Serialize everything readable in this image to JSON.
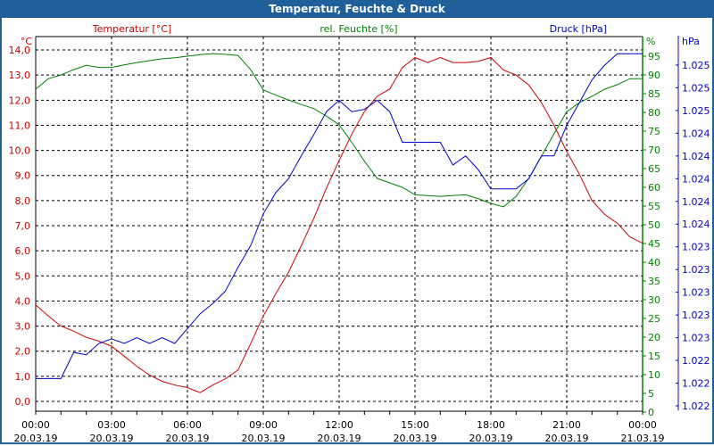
{
  "window_title": "Temperatur, Feuchte & Druck",
  "colors": {
    "temp": "#cc0000",
    "hum": "#008000",
    "press": "#0000cc",
    "title_bar": "#1f5f9a"
  },
  "chart_data": {
    "type": "line",
    "title": "Temperatur, Feuchte & Druck",
    "x_hours": [
      0,
      0.5,
      1,
      1.5,
      2,
      2.5,
      3,
      3.5,
      4,
      4.5,
      5,
      5.5,
      6,
      6.5,
      7,
      7.5,
      8,
      8.5,
      9,
      9.5,
      10,
      10.5,
      11,
      11.5,
      12,
      12.5,
      13,
      13.5,
      14,
      14.5,
      15,
      15.5,
      16,
      16.5,
      17,
      17.5,
      18,
      18.5,
      19,
      19.5,
      20,
      20.5,
      21,
      21.5,
      22,
      22.5,
      23,
      23.5,
      24
    ],
    "x_tick_labels": [
      [
        "00:00",
        "20.03.19"
      ],
      [
        "03:00",
        "20.03.19"
      ],
      [
        "06:00",
        "20.03.19"
      ],
      [
        "09:00",
        "20.03.19"
      ],
      [
        "12:00",
        "20.03.19"
      ],
      [
        "15:00",
        "20.03.19"
      ],
      [
        "18:00",
        "20.03.19"
      ],
      [
        "21:00",
        "20.03.19"
      ],
      [
        "00:00",
        "21.03.19"
      ]
    ],
    "series": [
      {
        "name": "Temperatur [°C]",
        "unit": "°C",
        "axis": "left",
        "ylim": [
          -0.43,
          14.0
        ],
        "ticks": [
          "0,0",
          "1,0",
          "2,0",
          "3,0",
          "4,0",
          "5,0",
          "6,0",
          "7,0",
          "8,0",
          "9,0",
          "10,0",
          "11,0",
          "12,0",
          "13,0",
          "14,0"
        ],
        "values": [
          3.84,
          3.4,
          3.0,
          2.8,
          2.55,
          2.4,
          2.2,
          1.8,
          1.4,
          1.05,
          0.8,
          0.65,
          0.55,
          0.35,
          0.65,
          0.9,
          1.25,
          2.3,
          3.4,
          4.3,
          5.15,
          6.2,
          7.3,
          8.5,
          9.6,
          10.65,
          11.55,
          12.15,
          12.45,
          13.3,
          13.7,
          13.5,
          13.7,
          13.5,
          13.5,
          13.55,
          13.7,
          13.2,
          13.0,
          12.6,
          11.9,
          11.0,
          9.95,
          9.05,
          8.0,
          7.45,
          7.1,
          6.55,
          6.3
        ]
      },
      {
        "name": "rel. Feuchte [%]",
        "unit": "%",
        "axis": "right1",
        "ylim": [
          0,
          95
        ],
        "ticks": [
          "0",
          "5",
          "10",
          "15",
          "20",
          "25",
          "30",
          "35",
          "40",
          "45",
          "50",
          "55",
          "60",
          "65",
          "70",
          "75",
          "80",
          "85",
          "90",
          "95"
        ],
        "values": [
          86.2,
          89,
          90,
          91.4,
          92.6,
          92,
          92,
          92.7,
          93.3,
          93.8,
          94.3,
          94.6,
          95,
          95.4,
          95.7,
          95.5,
          95.2,
          91.4,
          86,
          84.6,
          83.3,
          82.1,
          81,
          79,
          76.7,
          72,
          67,
          62.4,
          61.2,
          60,
          58,
          57.8,
          57.6,
          57.8,
          58,
          57,
          55.7,
          54.8,
          57.6,
          62.4,
          68.3,
          74.3,
          80.2,
          82.6,
          84.3,
          86.2,
          87.4,
          89,
          89
        ]
      },
      {
        "name": "Druck [hPa]",
        "unit": "hPa",
        "axis": "right2",
        "ylim": [
          1022.0,
          1025.0
        ],
        "ticks": [
          "1.022",
          "1.022",
          "1.022",
          "1.023",
          "1.023",
          "1.023",
          "1.023",
          "1.023",
          "1.024",
          "1.024",
          "1.024",
          "1.024",
          "1.024",
          "1.025",
          "1.025",
          "1.025"
        ],
        "values": [
          1022.24,
          1022.24,
          1022.24,
          1022.47,
          1022.45,
          1022.55,
          1022.59,
          1022.55,
          1022.6,
          1022.55,
          1022.6,
          1022.55,
          1022.68,
          1022.81,
          1022.9,
          1023.01,
          1023.22,
          1023.41,
          1023.69,
          1023.88,
          1024.0,
          1024.2,
          1024.39,
          1024.59,
          1024.69,
          1024.59,
          1024.61,
          1024.69,
          1024.59,
          1024.32,
          1024.32,
          1024.32,
          1024.32,
          1024.12,
          1024.2,
          1024.08,
          1023.91,
          1023.91,
          1023.91,
          1024.0,
          1024.2,
          1024.2,
          1024.47,
          1024.67,
          1024.87,
          1025.0,
          1025.1,
          1025.1,
          1025.1
        ]
      }
    ]
  }
}
